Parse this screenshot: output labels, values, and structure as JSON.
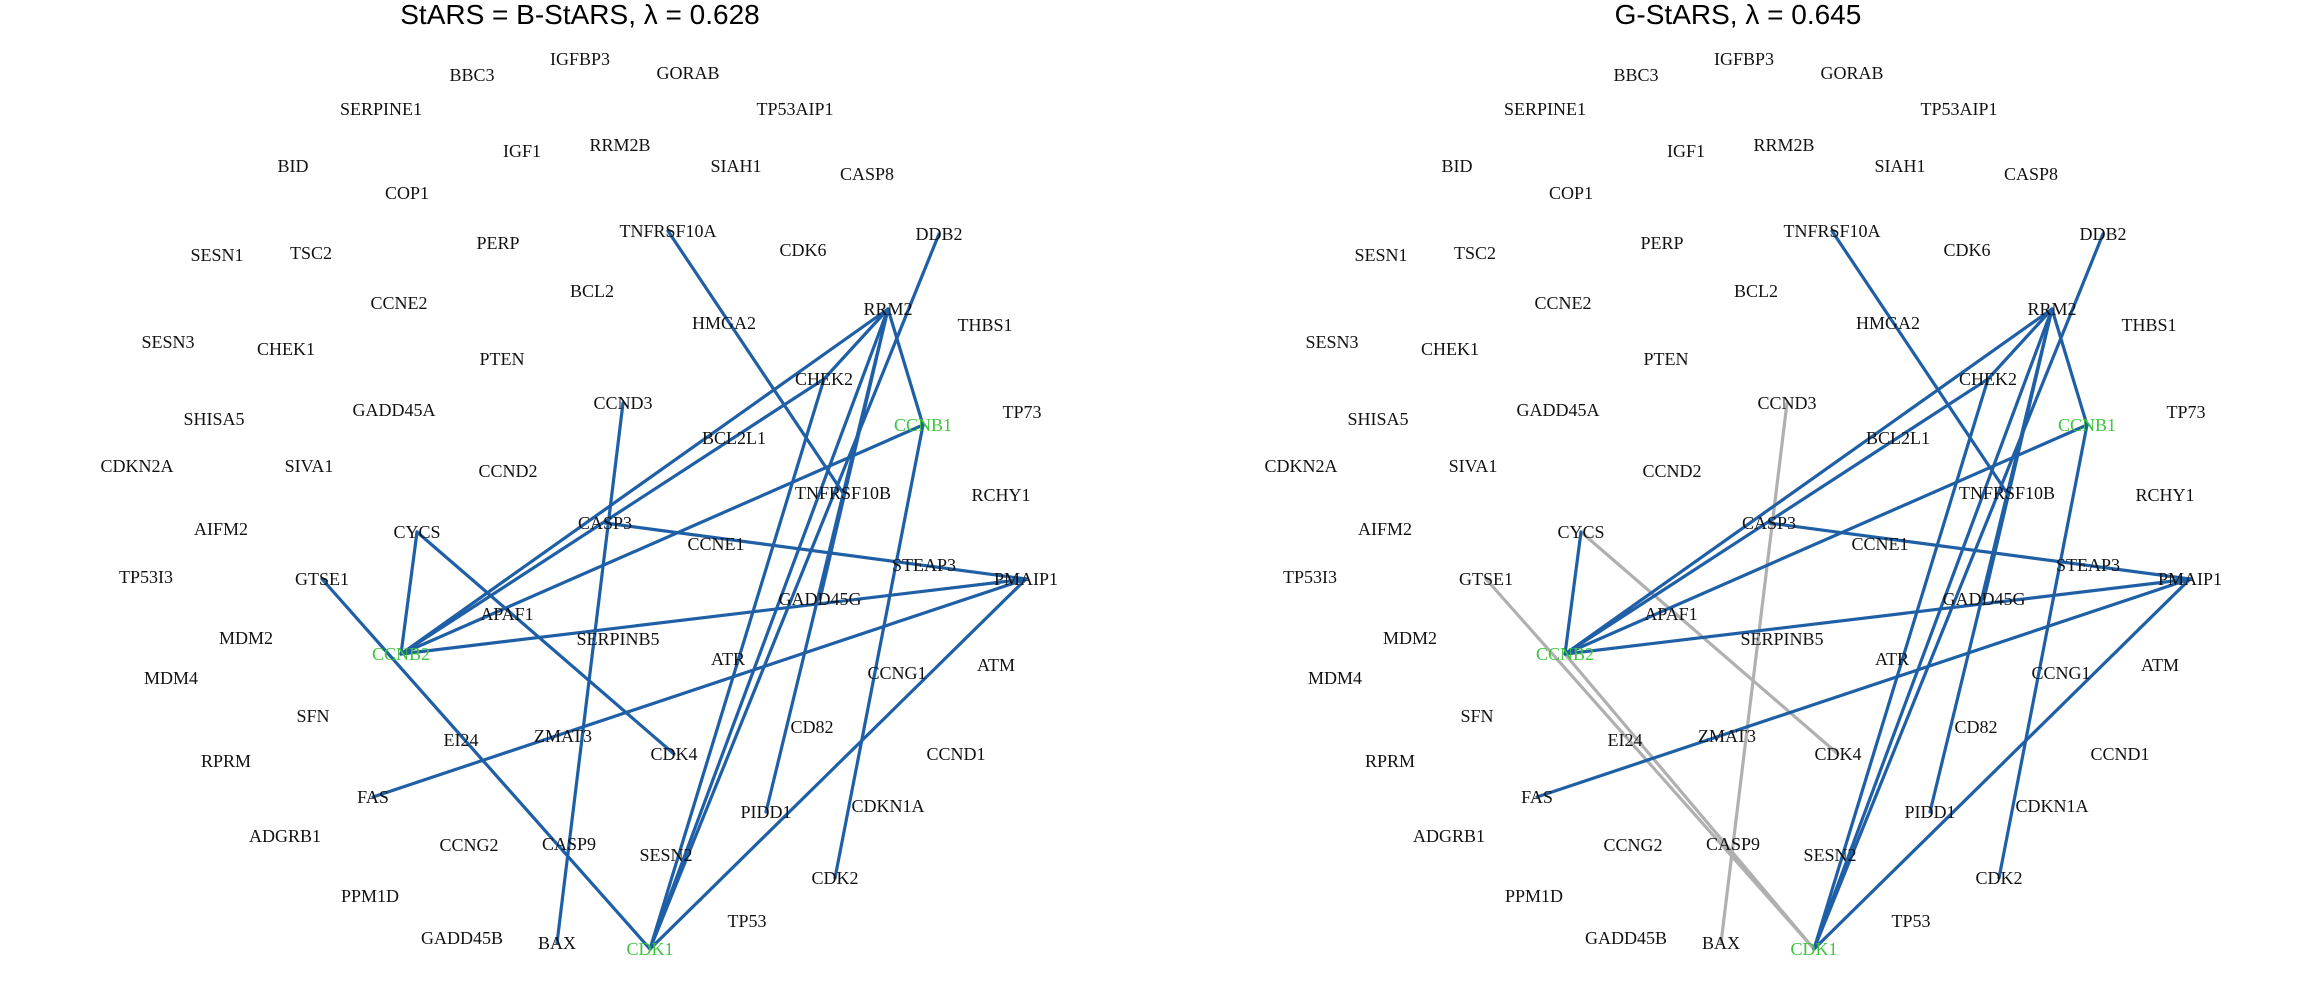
{
  "colors": {
    "edge": "#1f5fa6",
    "edge_alt": "#b0b0b0",
    "label": "#111111",
    "highlight": "#3cc43c"
  },
  "panels": [
    {
      "id": "b-stars",
      "title": "StARS = B-StARS, λ = 0.628",
      "edges": [
        [
          "RRM2",
          "CCNB2"
        ],
        [
          "RRM2",
          "CHEK2"
        ],
        [
          "RRM2",
          "CCNB1"
        ],
        [
          "RRM2",
          "GADD45G"
        ],
        [
          "RRM2",
          "CDK1"
        ],
        [
          "RRM2",
          "PIDD1"
        ],
        [
          "DDB2",
          "CDK1"
        ],
        [
          "TNFRSF10A",
          "TNFRSF10B"
        ],
        [
          "CHEK2",
          "CCNB2"
        ],
        [
          "CHEK2",
          "CDK1"
        ],
        [
          "CCNB1",
          "CCNB2"
        ],
        [
          "CCNB1",
          "CDK2"
        ],
        [
          "CASP3",
          "PMAIP1"
        ],
        [
          "CCNB2",
          "PMAIP1"
        ],
        [
          "PMAIP1",
          "FAS"
        ],
        [
          "PMAIP1",
          "CDK1"
        ],
        [
          "CYCS",
          "CCNB2"
        ],
        [
          "CYCS",
          "CDK4"
        ],
        [
          "CCND3",
          "BAX"
        ],
        [
          "GTSE1",
          "CDK1"
        ]
      ],
      "alt_edges": []
    },
    {
      "id": "g-stars",
      "title": "G-StARS, λ = 0.645",
      "edges": [
        [
          "RRM2",
          "CCNB2"
        ],
        [
          "RRM2",
          "CHEK2"
        ],
        [
          "RRM2",
          "CCNB1"
        ],
        [
          "RRM2",
          "GADD45G"
        ],
        [
          "RRM2",
          "CDK1"
        ],
        [
          "RRM2",
          "PIDD1"
        ],
        [
          "DDB2",
          "CDK1"
        ],
        [
          "TNFRSF10A",
          "TNFRSF10B"
        ],
        [
          "CHEK2",
          "CCNB2"
        ],
        [
          "CHEK2",
          "CDK1"
        ],
        [
          "CCNB1",
          "CCNB2"
        ],
        [
          "CCNB1",
          "CDK2"
        ],
        [
          "CASP3",
          "PMAIP1"
        ],
        [
          "CCNB2",
          "PMAIP1"
        ],
        [
          "PMAIP1",
          "FAS"
        ],
        [
          "PMAIP1",
          "CDK1"
        ],
        [
          "CYCS",
          "CCNB2"
        ]
      ],
      "alt_edges": [
        [
          "CCND3",
          "BAX"
        ],
        [
          "CYCS",
          "CDK4"
        ],
        [
          "GTSE1",
          "CDK1"
        ],
        [
          "CCNB2",
          "CDK1"
        ]
      ]
    }
  ],
  "nodes": [
    {
      "name": "IGFBP3"
    },
    {
      "name": "BBC3"
    },
    {
      "name": "GORAB"
    },
    {
      "name": "SERPINE1"
    },
    {
      "name": "TP53AIP1"
    },
    {
      "name": "IGF1"
    },
    {
      "name": "RRM2B"
    },
    {
      "name": "BID"
    },
    {
      "name": "SIAH1"
    },
    {
      "name": "CASP8"
    },
    {
      "name": "COP1"
    },
    {
      "name": "TNFRSF10A"
    },
    {
      "name": "DDB2"
    },
    {
      "name": "PERP"
    },
    {
      "name": "CDK6"
    },
    {
      "name": "SESN1"
    },
    {
      "name": "TSC2"
    },
    {
      "name": "BCL2"
    },
    {
      "name": "CCNE2"
    },
    {
      "name": "RRM2"
    },
    {
      "name": "HMGA2"
    },
    {
      "name": "THBS1"
    },
    {
      "name": "SESN3"
    },
    {
      "name": "CHEK1"
    },
    {
      "name": "PTEN"
    },
    {
      "name": "CHEK2"
    },
    {
      "name": "CCND3"
    },
    {
      "name": "TP73"
    },
    {
      "name": "GADD45A"
    },
    {
      "name": "SHISA5"
    },
    {
      "name": "CCNB1",
      "highlight": true
    },
    {
      "name": "BCL2L1"
    },
    {
      "name": "CDKN2A"
    },
    {
      "name": "SIVA1"
    },
    {
      "name": "CCND2"
    },
    {
      "name": "TNFRSF10B"
    },
    {
      "name": "RCHY1"
    },
    {
      "name": "AIFM2"
    },
    {
      "name": "CYCS"
    },
    {
      "name": "CASP3"
    },
    {
      "name": "CCNE1"
    },
    {
      "name": "STEAP3"
    },
    {
      "name": "TP53I3"
    },
    {
      "name": "GTSE1"
    },
    {
      "name": "PMAIP1"
    },
    {
      "name": "GADD45G"
    },
    {
      "name": "APAF1"
    },
    {
      "name": "MDM2"
    },
    {
      "name": "SERPINB5"
    },
    {
      "name": "CCNB2",
      "highlight": true
    },
    {
      "name": "ATR"
    },
    {
      "name": "ATM"
    },
    {
      "name": "MDM4"
    },
    {
      "name": "CCNG1"
    },
    {
      "name": "SFN"
    },
    {
      "name": "CD82"
    },
    {
      "name": "EI24"
    },
    {
      "name": "ZMAT3"
    },
    {
      "name": "RPRM"
    },
    {
      "name": "CDK4"
    },
    {
      "name": "CCND1"
    },
    {
      "name": "FAS"
    },
    {
      "name": "PIDD1"
    },
    {
      "name": "CDKN1A"
    },
    {
      "name": "ADGRB1"
    },
    {
      "name": "CCNG2"
    },
    {
      "name": "CASP9"
    },
    {
      "name": "SESN2"
    },
    {
      "name": "CDK2"
    },
    {
      "name": "PPM1D"
    },
    {
      "name": "TP53"
    },
    {
      "name": "GADD45B"
    },
    {
      "name": "BAX"
    },
    {
      "name": "CDK1",
      "highlight": true
    }
  ]
}
